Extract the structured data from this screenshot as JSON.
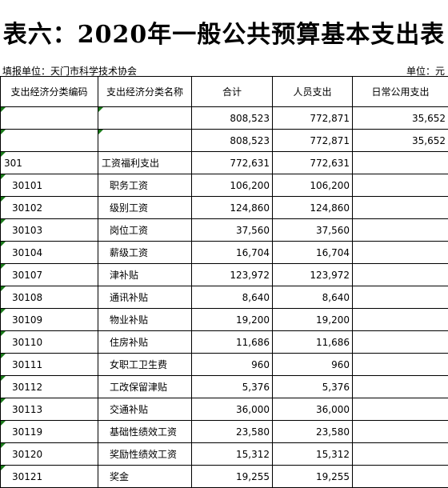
{
  "title": "表六：2020年一般公共预算基本支出表",
  "unit_left": "填报单位：天门市科学技术协会",
  "unit_right": "单位：元",
  "headers": {
    "code": "支出经济分类编码",
    "name": "支出经济分类名称",
    "total": "合计",
    "personnel": "人员支出",
    "public": "日常公用支出"
  },
  "rows": [
    {
      "code": "",
      "name": "",
      "total": "808,523",
      "personnel": "772,871",
      "public": "35,652"
    },
    {
      "code": "",
      "name": "",
      "total": "808,523",
      "personnel": "772,871",
      "public": "35,652"
    },
    {
      "code": "301",
      "name": "工资福利支出",
      "total": "772,631",
      "personnel": "772,631",
      "public": ""
    },
    {
      "code": "30101",
      "name": "职务工资",
      "total": "106,200",
      "personnel": "106,200",
      "public": ""
    },
    {
      "code": "30102",
      "name": "级别工资",
      "total": "124,860",
      "personnel": "124,860",
      "public": ""
    },
    {
      "code": "30103",
      "name": "岗位工资",
      "total": "37,560",
      "personnel": "37,560",
      "public": ""
    },
    {
      "code": "30104",
      "name": "薪级工资",
      "total": "16,704",
      "personnel": "16,704",
      "public": ""
    },
    {
      "code": "30107",
      "name": "津补贴",
      "total": "123,972",
      "personnel": "123,972",
      "public": ""
    },
    {
      "code": "30108",
      "name": "通讯补贴",
      "total": "8,640",
      "personnel": "8,640",
      "public": ""
    },
    {
      "code": "30109",
      "name": "物业补贴",
      "total": "19,200",
      "personnel": "19,200",
      "public": ""
    },
    {
      "code": "30110",
      "name": "住房补贴",
      "total": "11,686",
      "personnel": "11,686",
      "public": ""
    },
    {
      "code": "30111",
      "name": "女职工卫生费",
      "total": "960",
      "personnel": "960",
      "public": ""
    },
    {
      "code": "30112",
      "name": "工改保留津贴",
      "total": "5,376",
      "personnel": "5,376",
      "public": ""
    },
    {
      "code": "30113",
      "name": "交通补贴",
      "total": "36,000",
      "personnel": "36,000",
      "public": ""
    },
    {
      "code": "30119",
      "name": "基础性绩效工资",
      "total": "23,580",
      "personnel": "23,580",
      "public": ""
    },
    {
      "code": "30120",
      "name": "奖励性绩效工资",
      "total": "15,312",
      "personnel": "15,312",
      "public": ""
    },
    {
      "code": "30121",
      "name": "奖金",
      "total": "19,255",
      "personnel": "19,255",
      "public": ""
    }
  ]
}
